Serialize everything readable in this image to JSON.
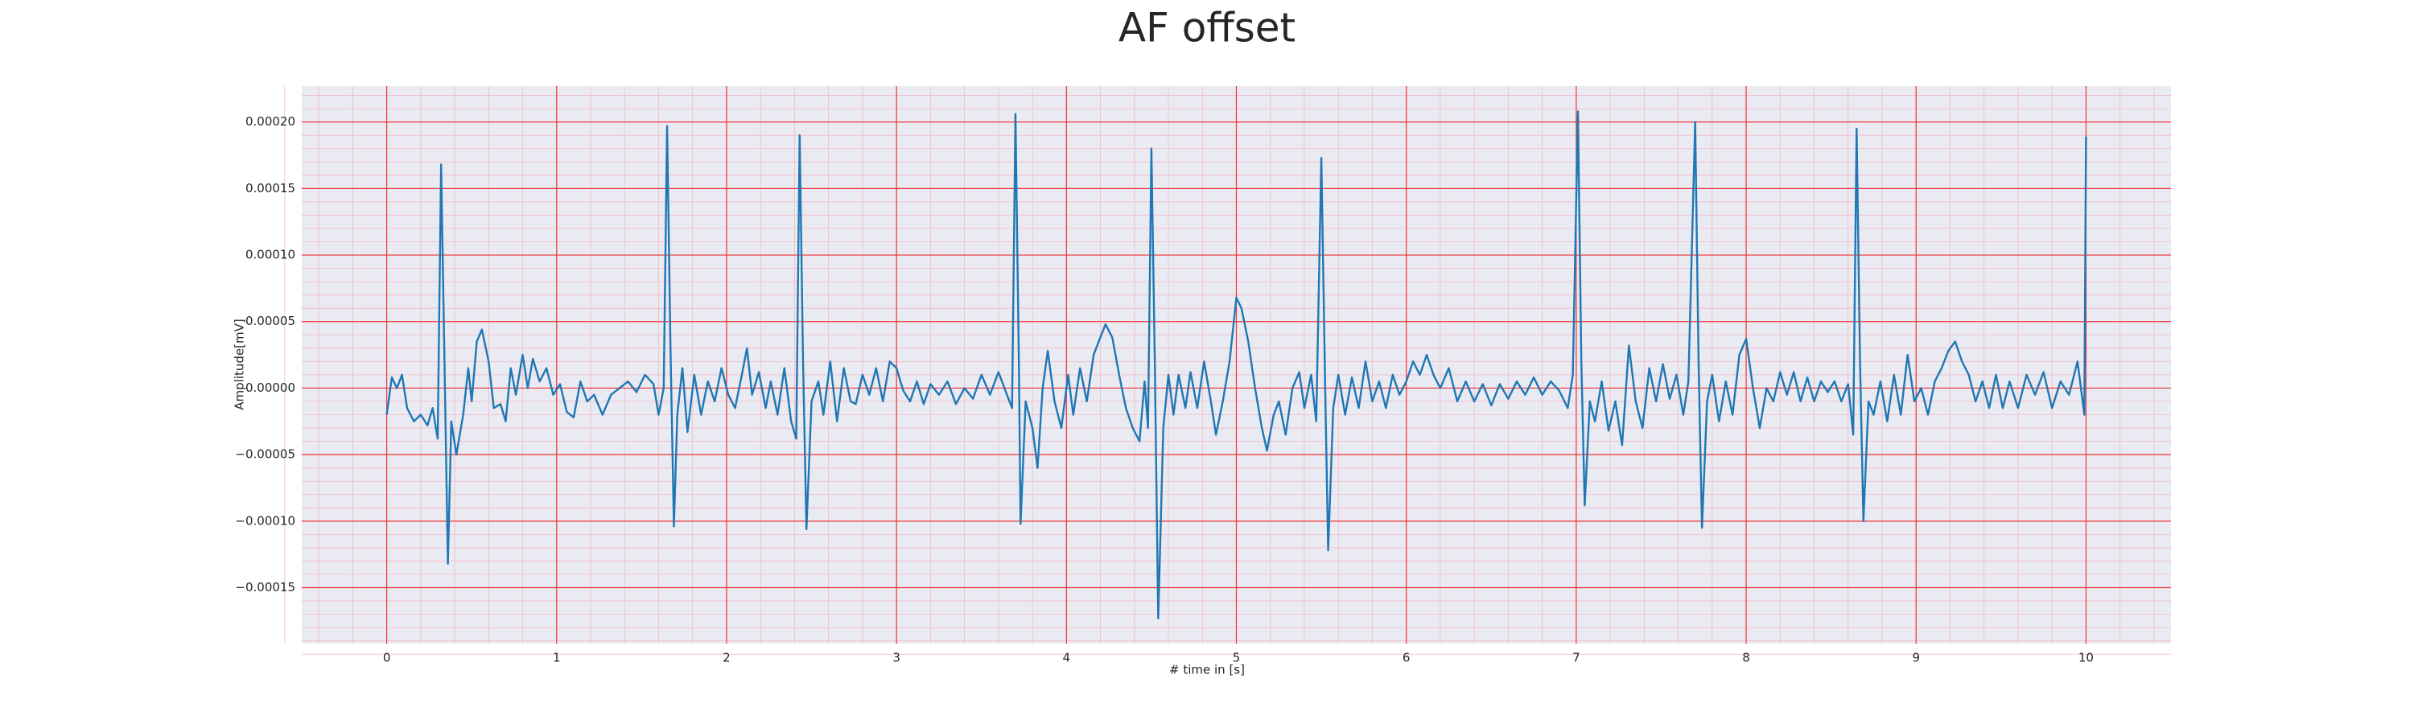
{
  "chart_data": {
    "type": "line",
    "title": "AF offset",
    "xlabel": "# time in [s]",
    "ylabel": "Amplitude[mV]",
    "color": "#1f77b4",
    "grid": true,
    "minor_grid": true,
    "xlim": [
      -0.5,
      10.5
    ],
    "ylim": [
      -0.000192,
      0.000227
    ],
    "xticks": [
      0,
      1,
      2,
      3,
      4,
      5,
      6,
      7,
      8,
      9,
      10
    ],
    "yticks": [
      {
        "value": -0.00015,
        "label": "−0.00015"
      },
      {
        "value": -0.0001,
        "label": "−0.00010"
      },
      {
        "value": -5e-05,
        "label": "−0.00005"
      },
      {
        "value": 0,
        "label": "0.00000"
      },
      {
        "value": 5e-05,
        "label": "0.00005"
      },
      {
        "value": 0.0001,
        "label": "0.00010"
      },
      {
        "value": 0.00015,
        "label": "0.00015"
      },
      {
        "value": 0.0002,
        "label": "0.00020"
      }
    ],
    "x": [
      0,
      0.03,
      0.06,
      0.09,
      0.12,
      0.16,
      0.2,
      0.24,
      0.27,
      0.3,
      0.32,
      0.34,
      0.36,
      0.38,
      0.41,
      0.45,
      0.48,
      0.5,
      0.53,
      0.56,
      0.6,
      0.63,
      0.67,
      0.7,
      0.73,
      0.76,
      0.8,
      0.83,
      0.86,
      0.9,
      0.94,
      0.98,
      1.02,
      1.06,
      1.1,
      1.14,
      1.18,
      1.22,
      1.27,
      1.32,
      1.37,
      1.42,
      1.47,
      1.52,
      1.57,
      1.6,
      1.63,
      1.65,
      1.67,
      1.69,
      1.71,
      1.74,
      1.77,
      1.81,
      1.85,
      1.89,
      1.93,
      1.97,
      2.01,
      2.05,
      2.09,
      2.12,
      2.15,
      2.19,
      2.23,
      2.26,
      2.3,
      2.34,
      2.38,
      2.41,
      2.43,
      2.45,
      2.47,
      2.5,
      2.54,
      2.57,
      2.61,
      2.65,
      2.69,
      2.73,
      2.76,
      2.8,
      2.84,
      2.88,
      2.92,
      2.96,
      3,
      3.04,
      3.08,
      3.12,
      3.16,
      3.2,
      3.25,
      3.3,
      3.35,
      3.4,
      3.45,
      3.5,
      3.55,
      3.6,
      3.65,
      3.68,
      3.7,
      3.72,
      3.73,
      3.76,
      3.8,
      3.83,
      3.86,
      3.89,
      3.93,
      3.97,
      4.01,
      4.04,
      4.08,
      4.12,
      4.16,
      4.19,
      4.23,
      4.27,
      4.31,
      4.35,
      4.39,
      4.43,
      4.46,
      4.48,
      4.5,
      4.52,
      4.54,
      4.57,
      4.6,
      4.63,
      4.66,
      4.7,
      4.73,
      4.77,
      4.81,
      4.85,
      4.88,
      4.92,
      4.96,
      5,
      5.03,
      5.07,
      5.11,
      5.15,
      5.18,
      5.22,
      5.25,
      5.29,
      5.33,
      5.37,
      5.4,
      5.44,
      5.47,
      5.5,
      5.52,
      5.54,
      5.57,
      5.6,
      5.64,
      5.68,
      5.72,
      5.76,
      5.8,
      5.84,
      5.88,
      5.92,
      5.96,
      6,
      6.04,
      6.08,
      6.12,
      6.16,
      6.2,
      6.25,
      6.3,
      6.35,
      6.4,
      6.45,
      6.5,
      6.55,
      6.6,
      6.65,
      6.7,
      6.75,
      6.8,
      6.85,
      6.9,
      6.95,
      6.98,
      7.01,
      7.03,
      7.05,
      7.08,
      7.11,
      7.15,
      7.19,
      7.23,
      7.27,
      7.31,
      7.35,
      7.39,
      7.43,
      7.47,
      7.51,
      7.55,
      7.59,
      7.63,
      7.66,
      7.7,
      7.72,
      7.74,
      7.77,
      7.8,
      7.84,
      7.88,
      7.92,
      7.96,
      8,
      8.04,
      8.08,
      8.12,
      8.16,
      8.2,
      8.24,
      8.28,
      8.32,
      8.36,
      8.4,
      8.44,
      8.48,
      8.52,
      8.56,
      8.6,
      8.63,
      8.65,
      8.67,
      8.69,
      8.72,
      8.75,
      8.79,
      8.83,
      8.87,
      8.91,
      8.95,
      8.99,
      9.03,
      9.07,
      9.11,
      9.15,
      9.19,
      9.23,
      9.27,
      9.31,
      9.35,
      9.39,
      9.43,
      9.47,
      9.51,
      9.55,
      9.6,
      9.65,
      9.7,
      9.75,
      9.8,
      9.85,
      9.9,
      9.95,
      9.99,
      10
    ],
    "values": [
      -2e-05,
      8e-06,
      0.0,
      1e-05,
      -1.5e-05,
      -2.5e-05,
      -2e-05,
      -2.8e-05,
      -1.5e-05,
      -3.8e-05,
      0.000168,
      2e-05,
      -0.000132,
      -2.5e-05,
      -5e-05,
      -2e-05,
      1.5e-05,
      -1e-05,
      3.5e-05,
      4.4e-05,
      2e-05,
      -1.5e-05,
      -1.2e-05,
      -2.5e-05,
      1.5e-05,
      -5e-06,
      2.5e-05,
      0.0,
      2.2e-05,
      5e-06,
      1.5e-05,
      -5e-06,
      3e-06,
      -1.8e-05,
      -2.2e-05,
      5e-06,
      -1e-05,
      -5e-06,
      -2e-05,
      -5e-06,
      0.0,
      5e-06,
      -3e-06,
      1e-05,
      3e-06,
      -2e-05,
      0.0,
      0.000197,
      3e-05,
      -0.000104,
      -2e-05,
      1.5e-05,
      -3.3e-05,
      1e-05,
      -2e-05,
      5e-06,
      -1e-05,
      1.5e-05,
      -5e-06,
      -1.5e-05,
      1e-05,
      3e-05,
      -5e-06,
      1.2e-05,
      -1.5e-05,
      5e-06,
      -2e-05,
      1.5e-05,
      -2.5e-05,
      -3.8e-05,
      0.00019,
      2e-05,
      -0.000106,
      -1e-05,
      5e-06,
      -2e-05,
      2e-05,
      -2.5e-05,
      1.5e-05,
      -1e-05,
      -1.2e-05,
      1e-05,
      -5e-06,
      1.5e-05,
      -1e-05,
      2e-05,
      1.5e-05,
      -2e-06,
      -1e-05,
      5e-06,
      -1.2e-05,
      3e-06,
      -5e-06,
      5e-06,
      -1.2e-05,
      0.0,
      -8e-06,
      1e-05,
      -5e-06,
      1.2e-05,
      -5e-06,
      -1.5e-05,
      0.000206,
      2e-05,
      -0.000102,
      -1e-05,
      -3e-05,
      -6e-05,
      0.0,
      2.8e-05,
      -1e-05,
      -3e-05,
      1e-05,
      -2e-05,
      1.5e-05,
      -1e-05,
      2.5e-05,
      3.5e-05,
      4.8e-05,
      3.8e-05,
      1e-05,
      -1.5e-05,
      -3e-05,
      -4e-05,
      5e-06,
      -3e-05,
      0.00018,
      2e-05,
      -0.000173,
      -3e-05,
      1e-05,
      -2e-05,
      1e-05,
      -1.5e-05,
      1.2e-05,
      -1.5e-05,
      2e-05,
      -1e-05,
      -3.5e-05,
      -1e-05,
      2e-05,
      6.8e-05,
      6e-05,
      3.5e-05,
      0.0,
      -3e-05,
      -4.7e-05,
      -2e-05,
      -1e-05,
      -3.5e-05,
      0.0,
      1.2e-05,
      -1.5e-05,
      1e-05,
      -2.5e-05,
      0.000173,
      2e-05,
      -0.000122,
      -1.5e-05,
      1e-05,
      -2e-05,
      8e-06,
      -1.5e-05,
      2e-05,
      -1e-05,
      5e-06,
      -1.5e-05,
      1e-05,
      -5e-06,
      5e-06,
      2e-05,
      1e-05,
      2.5e-05,
      1e-05,
      0.0,
      1.5e-05,
      -1e-05,
      5e-06,
      -1e-05,
      3e-06,
      -1.3e-05,
      3e-06,
      -8e-06,
      5e-06,
      -5e-06,
      8e-06,
      -5e-06,
      5e-06,
      -2e-06,
      -1.5e-05,
      1e-05,
      0.000208,
      2e-05,
      -8.8e-05,
      -1e-05,
      -2.5e-05,
      5e-06,
      -3.2e-05,
      -1e-05,
      -4.3e-05,
      3.2e-05,
      -1e-05,
      -3e-05,
      1.5e-05,
      -1e-05,
      1.8e-05,
      -8e-06,
      1e-05,
      -2e-05,
      5e-06,
      0.0002,
      2e-05,
      -0.000105,
      -1e-05,
      1e-05,
      -2.5e-05,
      5e-06,
      -2e-05,
      2.5e-05,
      3.7e-05,
      0.0,
      -3e-05,
      0.0,
      -1e-05,
      1.2e-05,
      -5e-06,
      1.2e-05,
      -1e-05,
      8e-06,
      -1e-05,
      5e-06,
      -3e-06,
      5e-06,
      -1e-05,
      3e-06,
      -3.5e-05,
      0.000195,
      2e-05,
      -0.0001,
      -1e-05,
      -2e-05,
      5e-06,
      -2.5e-05,
      1e-05,
      -2e-05,
      2.5e-05,
      -1e-05,
      0.0,
      -2e-05,
      5e-06,
      1.5e-05,
      2.8e-05,
      3.5e-05,
      2e-05,
      1e-05,
      -1e-05,
      5e-06,
      -1.5e-05,
      1e-05,
      -1.5e-05,
      5e-06,
      -1.5e-05,
      1e-05,
      -5e-06,
      1.2e-05,
      -1.5e-05,
      5e-06,
      -5e-06,
      2e-05,
      -2e-05,
      0.000189
    ]
  }
}
